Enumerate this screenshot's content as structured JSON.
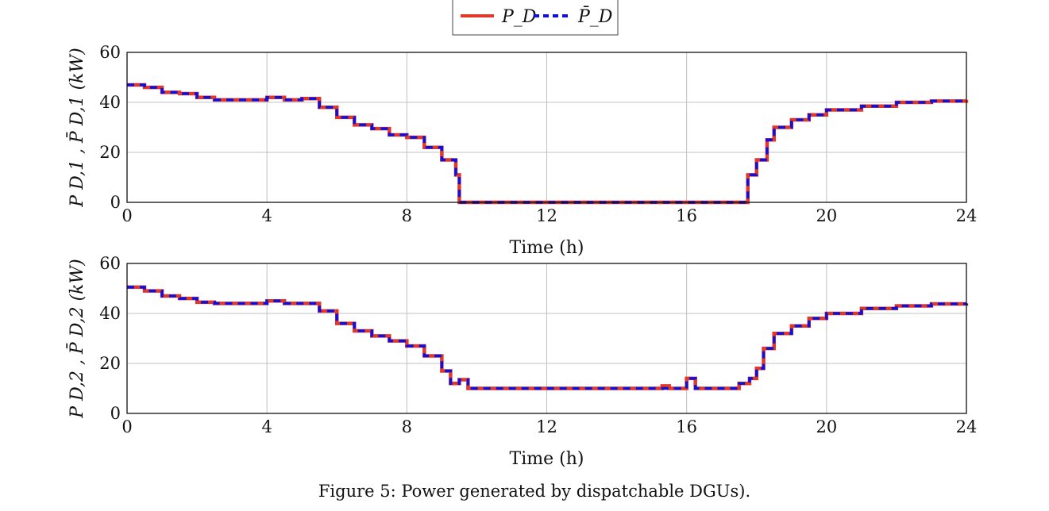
{
  "legend": {
    "series1": "P_D",
    "series2": "P̄_D"
  },
  "caption": "Figure 5: Power generated by dispatchable DGUs).",
  "colors": {
    "actual": "#e0392b",
    "reference": "#1010d8",
    "grid": "#c0c0c0"
  },
  "chart_data": [
    {
      "type": "line",
      "xlabel": "Time (h)",
      "ylabel": "P_{D,1}, P̄_{D,1} (kW)",
      "ylabel_text": "P D,1 , P̄ D,1 (kW)",
      "xlim": [
        0,
        24
      ],
      "ylim": [
        0,
        60
      ],
      "xticks": [
        0,
        4,
        8,
        12,
        16,
        20,
        24
      ],
      "yticks": [
        0,
        20,
        40,
        60
      ],
      "grid": true,
      "x": [
        0,
        0.5,
        1,
        1.5,
        2,
        2.5,
        3,
        3.5,
        4,
        4.5,
        5,
        5.5,
        6,
        6.5,
        7,
        7.5,
        8,
        8.5,
        9,
        9.4,
        9.5,
        12,
        17.7,
        17.75,
        18,
        18.3,
        18.5,
        19,
        19.5,
        20,
        21,
        22,
        23,
        24
      ],
      "series": [
        {
          "name": "P_D",
          "values": [
            47,
            46,
            44,
            43.5,
            42,
            41,
            41,
            41,
            42,
            41,
            41.5,
            38,
            34,
            31,
            29.5,
            27,
            26,
            22,
            17,
            11,
            0,
            0,
            0,
            11,
            17,
            25,
            30,
            33,
            35,
            37,
            38.5,
            40,
            40.5,
            41
          ]
        },
        {
          "name": "P̄_D",
          "values": [
            47,
            46,
            44,
            43.5,
            42,
            41,
            41,
            41,
            42,
            41,
            41.5,
            38,
            34,
            31,
            29.5,
            27,
            26,
            22,
            17,
            11,
            0,
            0,
            0,
            11,
            17,
            25,
            30,
            33,
            35,
            37,
            38.5,
            40,
            40.5,
            41
          ]
        }
      ]
    },
    {
      "type": "line",
      "xlabel": "Time (h)",
      "ylabel": "P_{D,2}, P̄_{D,2} (kW)",
      "ylabel_text": "P D,2 , P̄ D,2 (kW)",
      "xlim": [
        0,
        24
      ],
      "ylim": [
        0,
        60
      ],
      "xticks": [
        0,
        4,
        8,
        12,
        16,
        20,
        24
      ],
      "yticks": [
        0,
        20,
        40,
        60
      ],
      "grid": true,
      "x": [
        0,
        0.5,
        1,
        1.5,
        2,
        2.5,
        3,
        3.5,
        4,
        4.5,
        5,
        5.5,
        6,
        6.5,
        7,
        7.5,
        8,
        8.5,
        9,
        9.25,
        9.5,
        9.75,
        12,
        15.3,
        15.5,
        16,
        16.25,
        17.5,
        17.8,
        18,
        18.2,
        18.5,
        19,
        19.5,
        20,
        21,
        22,
        23,
        24
      ],
      "series": [
        {
          "name": "P_D",
          "values": [
            50.5,
            49,
            47,
            46,
            44.5,
            44,
            44,
            44,
            45,
            44,
            44,
            41,
            36,
            33,
            31,
            29,
            27,
            23,
            17,
            12,
            13.5,
            10,
            10,
            11,
            10,
            14,
            10,
            12,
            14,
            18,
            26,
            32,
            35,
            38,
            40,
            42,
            43,
            43.8,
            44
          ]
        },
        {
          "name": "P̄_D",
          "values": [
            50.5,
            49,
            47,
            46,
            44.5,
            44,
            44,
            44,
            45,
            44,
            44,
            41,
            36,
            33,
            31,
            29,
            27,
            23,
            17,
            12,
            13.5,
            10,
            10,
            10,
            10,
            14,
            10,
            12,
            14,
            18,
            26,
            32,
            35,
            38,
            40,
            42,
            43,
            43.8,
            44
          ]
        }
      ]
    }
  ]
}
